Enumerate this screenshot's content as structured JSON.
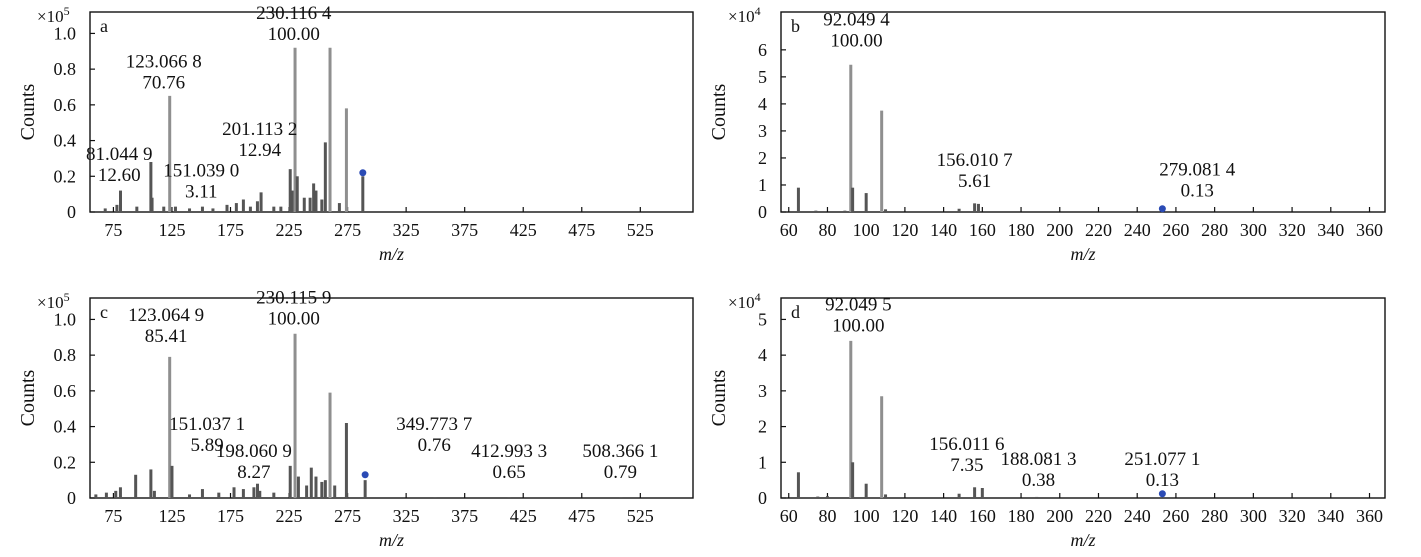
{
  "figure": {
    "counts_label": "Counts",
    "xlabel": "m/z"
  },
  "colors": {
    "frame": "#111111",
    "bar": "#8f8f8f",
    "bar_dark": "#555555",
    "precursor_marker": "#2b4bb5"
  },
  "chart_data": [
    {
      "panel_letter": "a",
      "type": "bar",
      "scale": "×10^5",
      "scale_base": "×10",
      "scale_exp": "5",
      "xlabel": "m/z",
      "ylabel": "Counts",
      "xlim": [
        55,
        570
      ],
      "ylim": [
        0,
        1.12
      ],
      "xticks": [
        75,
        125,
        175,
        225,
        275,
        325,
        375,
        425,
        475,
        525
      ],
      "yticks": [
        0,
        0.2,
        0.4,
        0.6,
        0.8,
        1.0
      ],
      "ytick_labels": [
        "0",
        "0.2",
        "0.4",
        "0.6",
        "0.8",
        "1.0"
      ],
      "peaks": [
        {
          "mz": 68,
          "y": 0.02
        },
        {
          "mz": 78,
          "y": 0.04
        },
        {
          "mz": 81.04,
          "y": 0.12
        },
        {
          "mz": 95,
          "y": 0.03
        },
        {
          "mz": 107,
          "y": 0.28
        },
        {
          "mz": 108,
          "y": 0.08
        },
        {
          "mz": 118,
          "y": 0.03
        },
        {
          "mz": 123.07,
          "y": 0.65
        },
        {
          "mz": 128,
          "y": 0.03
        },
        {
          "mz": 140,
          "y": 0.02
        },
        {
          "mz": 151.04,
          "y": 0.03
        },
        {
          "mz": 160,
          "y": 0.02
        },
        {
          "mz": 172,
          "y": 0.04
        },
        {
          "mz": 180,
          "y": 0.05
        },
        {
          "mz": 186,
          "y": 0.07
        },
        {
          "mz": 192,
          "y": 0.03
        },
        {
          "mz": 198,
          "y": 0.06
        },
        {
          "mz": 201.11,
          "y": 0.11
        },
        {
          "mz": 212,
          "y": 0.03
        },
        {
          "mz": 218,
          "y": 0.03
        },
        {
          "mz": 226,
          "y": 0.24
        },
        {
          "mz": 228,
          "y": 0.12
        },
        {
          "mz": 230.12,
          "y": 0.92
        },
        {
          "mz": 232,
          "y": 0.2
        },
        {
          "mz": 238,
          "y": 0.08
        },
        {
          "mz": 243,
          "y": 0.08
        },
        {
          "mz": 246,
          "y": 0.16
        },
        {
          "mz": 248,
          "y": 0.12
        },
        {
          "mz": 253,
          "y": 0.07
        },
        {
          "mz": 256,
          "y": 0.39
        },
        {
          "mz": 260,
          "y": 0.92
        },
        {
          "mz": 268,
          "y": 0.05
        },
        {
          "mz": 274,
          "y": 0.58
        },
        {
          "mz": 288,
          "y": 0.2
        }
      ],
      "precursor": {
        "mz": 288,
        "y": 0.22
      },
      "annotations": [
        {
          "mz_label": "230.116 4",
          "rel": "100.00",
          "x": 229,
          "y": 1.08
        },
        {
          "mz_label": "123.066 8",
          "rel": "70.76",
          "x": 118,
          "y": 0.81
        },
        {
          "mz_label": "201.113 2",
          "rel": "12.94",
          "x": 200,
          "y": 0.43
        },
        {
          "mz_label": "81.044 9",
          "rel": "12.60",
          "x": 80,
          "y": 0.29
        },
        {
          "mz_label": "151.039 0",
          "rel": "3.11",
          "x": 150,
          "y": 0.2
        }
      ]
    },
    {
      "panel_letter": "b",
      "type": "bar",
      "scale": "×10^4",
      "scale_base": "×10",
      "scale_exp": "4",
      "xlabel": "m/z",
      "ylabel": "Counts",
      "xlim": [
        56,
        368
      ],
      "ylim": [
        0,
        7.4
      ],
      "xticks": [
        60,
        80,
        100,
        120,
        140,
        160,
        180,
        200,
        220,
        240,
        260,
        280,
        300,
        320,
        340,
        360
      ],
      "yticks": [
        0,
        1,
        2,
        3,
        4,
        5,
        6
      ],
      "ytick_labels": [
        "0",
        "1",
        "2",
        "3",
        "4",
        "5",
        "6"
      ],
      "peaks": [
        {
          "mz": 65,
          "y": 0.9
        },
        {
          "mz": 74,
          "y": 0.05
        },
        {
          "mz": 89,
          "y": 0.05
        },
        {
          "mz": 92.05,
          "y": 5.45
        },
        {
          "mz": 93,
          "y": 0.9
        },
        {
          "mz": 100,
          "y": 0.7
        },
        {
          "mz": 108,
          "y": 3.75
        },
        {
          "mz": 110,
          "y": 0.1
        },
        {
          "mz": 148,
          "y": 0.12
        },
        {
          "mz": 156.01,
          "y": 0.32
        },
        {
          "mz": 158,
          "y": 0.3
        }
      ],
      "precursor": {
        "mz": 253,
        "y": 0.12
      },
      "annotations": [
        {
          "mz_label": "92.049 4",
          "rel": "100.00",
          "x": 95,
          "y": 6.9
        },
        {
          "mz_label": "156.010 7",
          "rel": "5.61",
          "x": 156,
          "y": 1.7
        },
        {
          "mz_label": "279.081 4",
          "rel": "0.13",
          "x": 271,
          "y": 1.35
        }
      ]
    },
    {
      "panel_letter": "c",
      "type": "bar",
      "scale": "×10^5",
      "scale_base": "×10",
      "scale_exp": "5",
      "xlabel": "m/z",
      "ylabel": "Counts",
      "xlim": [
        55,
        570
      ],
      "ylim": [
        0,
        1.12
      ],
      "xticks": [
        75,
        125,
        175,
        225,
        275,
        325,
        375,
        425,
        475,
        525
      ],
      "yticks": [
        0,
        0.2,
        0.4,
        0.6,
        0.8,
        1.0
      ],
      "ytick_labels": [
        "0",
        "0.2",
        "0.4",
        "0.6",
        "0.8",
        "1.0"
      ],
      "peaks": [
        {
          "mz": 60,
          "y": 0.02
        },
        {
          "mz": 69,
          "y": 0.03
        },
        {
          "mz": 77,
          "y": 0.04
        },
        {
          "mz": 81,
          "y": 0.06
        },
        {
          "mz": 94,
          "y": 0.13
        },
        {
          "mz": 107,
          "y": 0.16
        },
        {
          "mz": 110,
          "y": 0.04
        },
        {
          "mz": 123.06,
          "y": 0.79
        },
        {
          "mz": 125,
          "y": 0.18
        },
        {
          "mz": 140,
          "y": 0.02
        },
        {
          "mz": 151.04,
          "y": 0.05
        },
        {
          "mz": 165,
          "y": 0.03
        },
        {
          "mz": 178,
          "y": 0.06
        },
        {
          "mz": 186,
          "y": 0.05
        },
        {
          "mz": 195,
          "y": 0.06
        },
        {
          "mz": 198.06,
          "y": 0.08
        },
        {
          "mz": 200,
          "y": 0.04
        },
        {
          "mz": 212,
          "y": 0.03
        },
        {
          "mz": 226,
          "y": 0.18
        },
        {
          "mz": 230.12,
          "y": 0.92
        },
        {
          "mz": 233,
          "y": 0.12
        },
        {
          "mz": 240,
          "y": 0.07
        },
        {
          "mz": 244,
          "y": 0.17
        },
        {
          "mz": 248,
          "y": 0.12
        },
        {
          "mz": 253,
          "y": 0.09
        },
        {
          "mz": 256,
          "y": 0.1
        },
        {
          "mz": 260,
          "y": 0.59
        },
        {
          "mz": 264,
          "y": 0.07
        },
        {
          "mz": 274,
          "y": 0.42
        },
        {
          "mz": 290,
          "y": 0.1
        },
        {
          "mz": 349.77,
          "y": 0.005
        },
        {
          "mz": 412.99,
          "y": 0.005
        },
        {
          "mz": 508.37,
          "y": 0.005
        }
      ],
      "precursor": {
        "mz": 290,
        "y": 0.13
      },
      "annotations": [
        {
          "mz_label": "230.115 9",
          "rel": "100.00",
          "x": 229,
          "y": 1.09
        },
        {
          "mz_label": "123.064 9",
          "rel": "85.41",
          "x": 120,
          "y": 0.99
        },
        {
          "mz_label": "151.037 1",
          "rel": "5.89",
          "x": 155,
          "y": 0.38
        },
        {
          "mz_label": "198.060 9",
          "rel": "8.27",
          "x": 195,
          "y": 0.23
        },
        {
          "mz_label": "349.773 7",
          "rel": "0.76",
          "x": 349,
          "y": 0.38
        },
        {
          "mz_label": "412.993 3",
          "rel": "0.65",
          "x": 413,
          "y": 0.23
        },
        {
          "mz_label": "508.366 1",
          "rel": "0.79",
          "x": 508,
          "y": 0.23
        }
      ]
    },
    {
      "panel_letter": "d",
      "type": "bar",
      "scale": "×10^4",
      "scale_base": "×10",
      "scale_exp": "4",
      "xlabel": "m/z",
      "ylabel": "Counts",
      "xlim": [
        56,
        368
      ],
      "ylim": [
        0,
        5.6
      ],
      "xticks": [
        60,
        80,
        100,
        120,
        140,
        160,
        180,
        200,
        220,
        240,
        260,
        280,
        300,
        320,
        340,
        360
      ],
      "yticks": [
        0,
        1,
        2,
        3,
        4,
        5
      ],
      "ytick_labels": [
        "0",
        "1",
        "2",
        "3",
        "4",
        "5"
      ],
      "peaks": [
        {
          "mz": 65,
          "y": 0.72
        },
        {
          "mz": 75,
          "y": 0.04
        },
        {
          "mz": 80,
          "y": 0.05
        },
        {
          "mz": 92.05,
          "y": 4.4
        },
        {
          "mz": 93,
          "y": 1.0
        },
        {
          "mz": 100,
          "y": 0.4
        },
        {
          "mz": 108,
          "y": 2.85
        },
        {
          "mz": 110,
          "y": 0.1
        },
        {
          "mz": 148,
          "y": 0.12
        },
        {
          "mz": 156.01,
          "y": 0.3
        },
        {
          "mz": 160,
          "y": 0.28
        },
        {
          "mz": 188.08,
          "y": 0.03
        }
      ],
      "precursor": {
        "mz": 253,
        "y": 0.12
      },
      "annotations": [
        {
          "mz_label": "92.049 5",
          "rel": "100.00",
          "x": 96,
          "y": 5.25
        },
        {
          "mz_label": "156.011 6",
          "rel": "7.35",
          "x": 152,
          "y": 1.35
        },
        {
          "mz_label": "188.081 3",
          "rel": "0.38",
          "x": 189,
          "y": 0.92
        },
        {
          "mz_label": "251.077 1",
          "rel": "0.13",
          "x": 253,
          "y": 0.92
        }
      ]
    }
  ]
}
